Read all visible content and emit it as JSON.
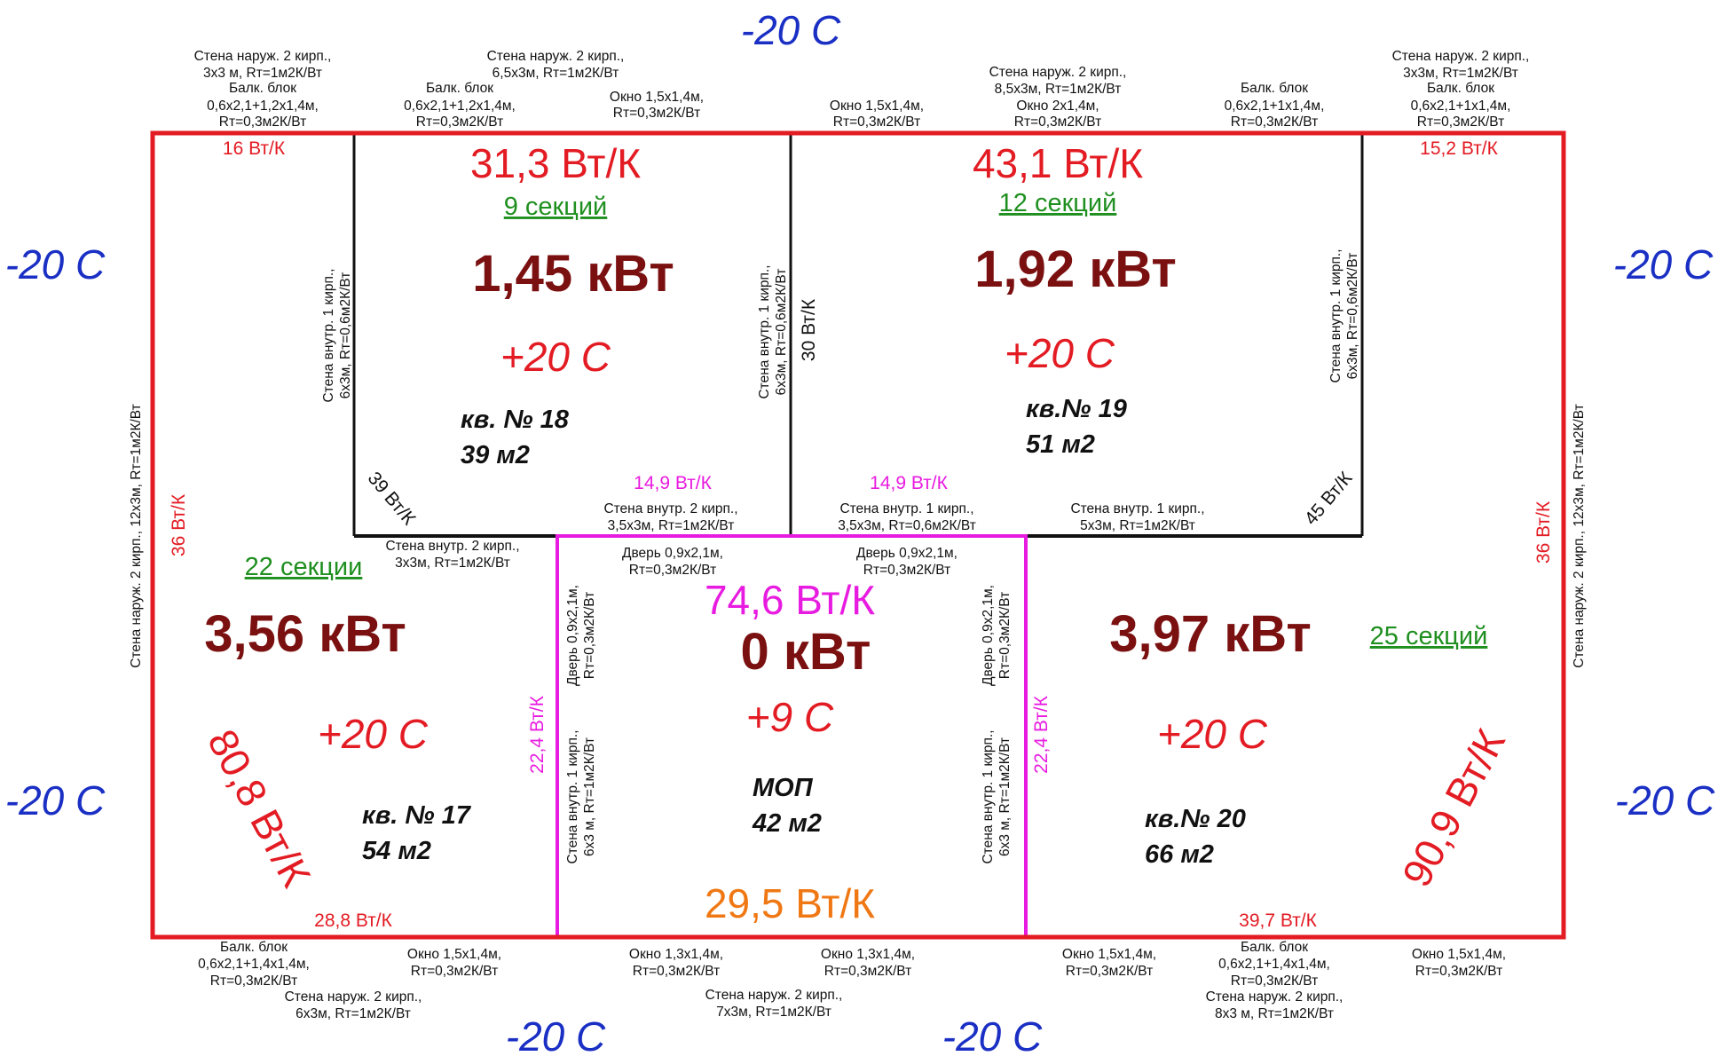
{
  "outside_temps": {
    "top": "-20 С",
    "left_top": "-20 С",
    "left_bottom": "-20 С",
    "right_top": "-20 С",
    "right_bottom": "-20 С",
    "bottom_left": "-20 С",
    "bottom_right": "-20 С"
  },
  "colors": {
    "outer_wall": "#e31b23",
    "inner_wall": "#111111",
    "corridor_wall": "#e81be0",
    "corridor_window_wall": "#f07814",
    "outside_temp": "#1a2fc4",
    "power": "#7b1010",
    "sections": "#1f8f1f"
  },
  "rooms": {
    "apt18": {
      "heat_loss": "31,3 Вт/К",
      "sections": "9 секций",
      "power": "1,45 кВт",
      "temp": "+20 С",
      "name": "кв. № 18",
      "area": "39 м2"
    },
    "apt19": {
      "heat_loss": "43,1 Вт/К",
      "sections": "12 секций",
      "power": "1,92 кВт",
      "temp": "+20 С",
      "name": "кв.№ 19",
      "area": "51 м2"
    },
    "apt17": {
      "heat_loss": "80,8 Вт/К",
      "sections": "22 секции",
      "power": "3,56 кВт",
      "temp": "+20 С",
      "name": "кв. № 17",
      "area": "54 м2"
    },
    "apt20": {
      "heat_loss": "90,9 Вт/К",
      "sections": "25 секций",
      "power": "3,97 кВт",
      "temp": "+20 С",
      "name": "кв.№ 20",
      "area": "66 м2"
    },
    "mop": {
      "heat_loss_inner": "74,6 Вт/К",
      "power": "0 кВт",
      "temp": "+9 С",
      "name": "МОП",
      "area": "42 м2",
      "heat_loss_window": "29,5 Вт/К"
    }
  },
  "wall_values": {
    "top_left_corner": "16 Вт/К",
    "top_right_corner": "15,2 Вт/К",
    "left_outer": "36 Вт/К",
    "right_outer": "36 Вт/К",
    "bottom_left": "28,8 Вт/К",
    "bottom_right": "39,7 Вт/К",
    "wall_18_19": "30 Вт/К",
    "diag_18": "39 Вт/К",
    "diag_19": "45 Вт/К",
    "mop_top_left": "14,9 Вт/К",
    "mop_top_right": "14,9 Вт/К",
    "mop_left": "22,4 Вт/К",
    "mop_right": "22,4 Вт/К"
  },
  "notes": {
    "tl1_a": "Стена наруж. 2 кирп.,",
    "tl1_b": "3х3 м, Rт=1м2К/Вт",
    "tl1_c": "Балк. блок",
    "tl1_d": "0,6х2,1+1,2х1,4м,",
    "tl1_e": "Rт=0,3м2К/Вт",
    "t18a_a": "Стена наруж. 2 кирп.,",
    "t18a_b": "6,5х3м, Rт=1м2К/Вт",
    "t18b_a": "Балк. блок",
    "t18b_b": "0,6х2,1+1,2х1,4м,",
    "t18b_c": "Rт=0,3м2К/Вт",
    "t18c_a": "Окно 1,5х1,4м,",
    "t18c_b": "Rт=0,3м2К/Вт",
    "t19a_a": "Окно 1,5х1,4м,",
    "t19a_b": "Rт=0,3м2К/Вт",
    "t19b_a": "Стена наруж. 2 кирп.,",
    "t19b_b": "8,5х3м, Rт=1м2К/Вт",
    "t19b_c": "Окно 2х1,4м,",
    "t19b_d": "Rт=0,3м2К/Вт",
    "t19c_a": "Балк. блок",
    "t19c_b": "0,6х2,1+1х1,4м,",
    "t19c_c": "Rт=0,3м2К/Вт",
    "tr1_a": "Стена наруж. 2 кирп.,",
    "tr1_b": "3х3м, Rт=1м2К/Вт",
    "tr1_c": "Балк. блок",
    "tr1_d": "0,6х2,1+1х1,4м,",
    "tr1_e": "Rт=0,3м2К/Вт",
    "vert_left_outer": "Стена наруж. 2 кирп., 12х3м, Rт=1м2К/Вт",
    "vert_right_outer": "Стена наруж. 2 кирп., 12х3м, Rт=1м2К/Вт",
    "vert18_a": "Стена внутр. 1 кирп.,",
    "vert18_b": "6х3м, Rт=0,6м2К/Вт",
    "vert1819_a": "Стена внутр. 1 кирп.,",
    "vert1819_b": "6х3м, Rт=0,6м2К/Вт",
    "vert19_a": "Стена внутр. 1 кирп.,",
    "vert19_b": "6х3м, Rт=0,6м2К/Вт",
    "w17_18_a": "Стена внутр. 2 кирп.,",
    "w17_18_b": "3х3м, Rт=1м2К/Вт",
    "wmop18_a": "Стена внутр. 2 кирп.,",
    "wmop18_b": "3,5х3м, Rт=1м2К/Вт",
    "wmop19_a": "Стена внутр. 1 кирп.,",
    "wmop19_b": "3,5х3м, Rт=0,6м2К/Вт",
    "w19_20_a": "Стена внутр. 1 кирп.,",
    "w19_20_b": "5х3м, Rт=1м2К/Вт",
    "doortop1_a": "Дверь 0,9х2,1м,",
    "doortop1_b": "Rт=0,3м2К/Вт",
    "doortop2_a": "Дверь 0,9х2,1м,",
    "doortop2_b": "Rт=0,3м2К/Вт",
    "doorleft_a": "Дверь 0,9х2,1м,",
    "doorleft_b": "Rт=0,3м2К/Вт",
    "doorright_a": "Дверь 0,9х2,1м,",
    "doorright_b": "Rт=0,3м2К/Вт",
    "mopleft_a": "Стена внутр. 1 кирп.,",
    "mopleft_b": "6х3 м, Rт=1м2К/Вт",
    "mopright_a": "Стена внутр. 1 кирп.,",
    "mopright_b": "6х3 м, Rт=1м2К/Вт",
    "b17a_a": "Балк. блок",
    "b17a_b": "0,6х2,1+1,4х1,4м,",
    "b17a_c": "Rт=0,3м2К/Вт",
    "b17b_a": "Окно 1,5х1,4м,",
    "b17b_b": "Rт=0,3м2К/Вт",
    "b17c_a": "Стена наруж. 2 кирп.,",
    "b17c_b": "6х3м, Rт=1м2К/Вт",
    "bm1_a": "Окно 1,3х1,4м,",
    "bm1_b": "Rт=0,3м2К/Вт",
    "bm2_a": "Окно 1,3х1,4м,",
    "bm2_b": "Rт=0,3м2К/Вт",
    "bm3_a": "Стена наруж. 2 кирп.,",
    "bm3_b": "7х3м, Rт=1м2К/Вт",
    "b20a_a": "Окно 1,5х1,4м,",
    "b20a_b": "Rт=0,3м2К/Вт",
    "b20b_a": "Балк. блок",
    "b20b_b": "0,6х2,1+1,4х1,4м,",
    "b20b_c": "Rт=0,3м2К/Вт",
    "b20b_d": "Стена наруж. 2 кирп.,",
    "b20b_e": "8х3 м, Rт=1м2К/Вт",
    "b20c_a": "Окно 1,5х1,4м,",
    "b20c_b": "Rт=0,3м2К/Вт"
  }
}
